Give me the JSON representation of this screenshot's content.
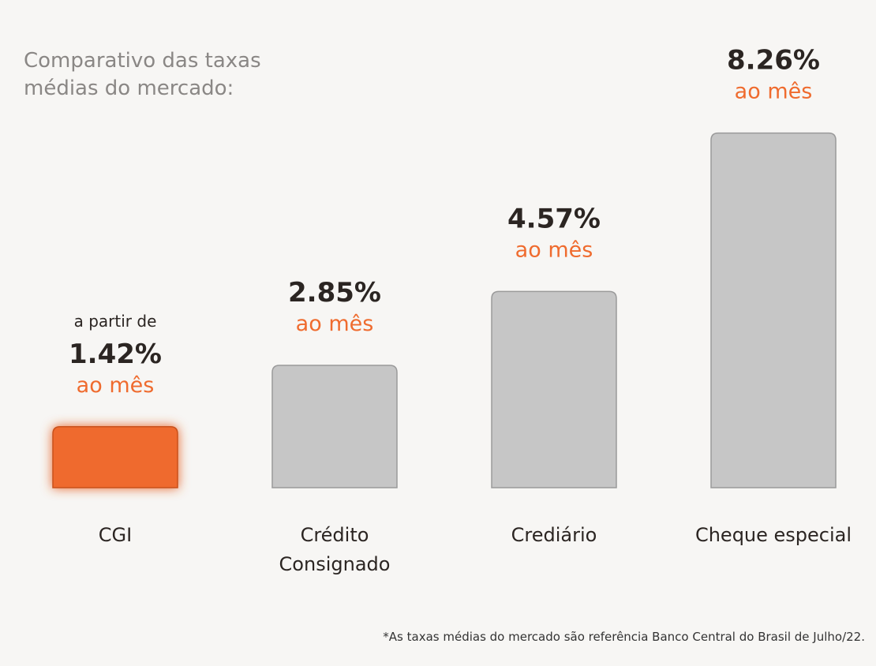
{
  "title": "Comparativo das taxas médias do mercado:",
  "footnote": "*As taxas médias do mercado são referência Banco Central do Brasil de Julho/22.",
  "colors": {
    "background": "#f7f6f4",
    "highlight_bar": "#ef6b2e",
    "highlight_stroke": "#c9511a",
    "neutral_bar": "#c6c6c6",
    "neutral_stroke": "#9a9a9a",
    "value_text": "#2b2522",
    "unit_text": "#ef6b2e",
    "label_text": "#2b2522"
  },
  "chart_data": {
    "type": "bar",
    "categories": [
      "CGI",
      "Crédito Consignado",
      "Crediário",
      "Cheque especial"
    ],
    "values": [
      1.42,
      2.85,
      4.57,
      8.26
    ],
    "value_labels": [
      "1.42%",
      "2.85%",
      "4.57%",
      "8.26%"
    ],
    "unit_label": "ao mês",
    "prefixes": [
      "a partir de",
      "",
      "",
      ""
    ],
    "highlighted": [
      true,
      false,
      false,
      false
    ],
    "title": "Comparativo das taxas médias do mercado:",
    "xlabel": "",
    "ylabel": "",
    "grid": false,
    "legend": "none"
  }
}
